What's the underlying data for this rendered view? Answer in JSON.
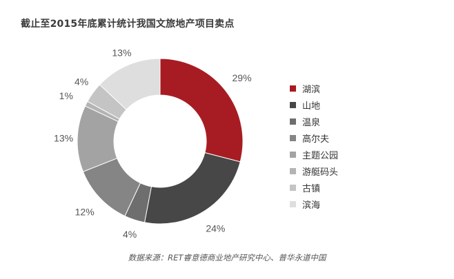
{
  "chart_data": {
    "type": "donut",
    "title": "截止至2015年底累计统计我国文旅地产项目卖点",
    "series": [
      {
        "name": "湖滨",
        "value": 29,
        "label": "29%",
        "color": "#a71c23"
      },
      {
        "name": "山地",
        "value": 24,
        "label": "24%",
        "color": "#474747"
      },
      {
        "name": "温泉",
        "value": 4,
        "label": "4%",
        "color": "#6e6e6e"
      },
      {
        "name": "高尔夫",
        "value": 12,
        "label": "12%",
        "color": "#858585"
      },
      {
        "name": "主题公园",
        "value": 13,
        "label": "13%",
        "color": "#a3a3a3"
      },
      {
        "name": "游艇码头",
        "value": 1,
        "label": "1%",
        "color": "#b4b4b4"
      },
      {
        "name": "古镇",
        "value": 4,
        "label": "4%",
        "color": "#c4c4c4"
      },
      {
        "name": "滨海",
        "value": 13,
        "label": "13%",
        "color": "#dedede"
      }
    ],
    "source": "数据来源：RET睿意德商业地产研究中心、普华永道中国"
  }
}
